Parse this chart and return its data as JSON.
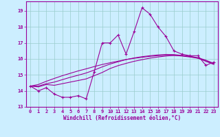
{
  "xlabel": "Windchill (Refroidissement éolien,°C)",
  "background_color": "#cceeff",
  "grid_color": "#99cccc",
  "line_color": "#990099",
  "xlim": [
    -0.5,
    23.5
  ],
  "ylim": [
    13,
    19.6
  ],
  "yticks": [
    13,
    14,
    15,
    16,
    17,
    18,
    19
  ],
  "xticks": [
    0,
    1,
    2,
    3,
    4,
    5,
    6,
    7,
    8,
    9,
    10,
    11,
    12,
    13,
    14,
    15,
    16,
    17,
    18,
    19,
    20,
    21,
    22,
    23
  ],
  "main_series": [
    14.3,
    14.0,
    14.2,
    13.8,
    13.6,
    13.6,
    13.7,
    13.5,
    15.2,
    17.0,
    17.0,
    17.5,
    16.3,
    17.7,
    19.2,
    18.8,
    18.0,
    17.4,
    16.5,
    16.3,
    16.2,
    16.2,
    15.6,
    15.8
  ],
  "smooth1": [
    14.3,
    14.25,
    14.4,
    14.35,
    14.45,
    14.55,
    14.65,
    14.75,
    14.95,
    15.15,
    15.4,
    15.58,
    15.72,
    15.85,
    15.95,
    16.05,
    16.12,
    16.18,
    16.22,
    16.2,
    16.15,
    16.05,
    15.85,
    15.65
  ],
  "smooth2": [
    14.3,
    14.3,
    14.45,
    14.55,
    14.7,
    14.85,
    14.98,
    15.12,
    15.3,
    15.5,
    15.68,
    15.82,
    15.96,
    16.06,
    16.14,
    16.2,
    16.25,
    16.28,
    16.27,
    16.22,
    16.16,
    16.08,
    15.92,
    15.72
  ],
  "smooth3": [
    14.3,
    14.4,
    14.6,
    14.78,
    14.95,
    15.1,
    15.25,
    15.38,
    15.52,
    15.65,
    15.76,
    15.86,
    15.96,
    16.04,
    16.1,
    16.16,
    16.2,
    16.22,
    16.22,
    16.18,
    16.12,
    16.04,
    15.88,
    15.7
  ]
}
